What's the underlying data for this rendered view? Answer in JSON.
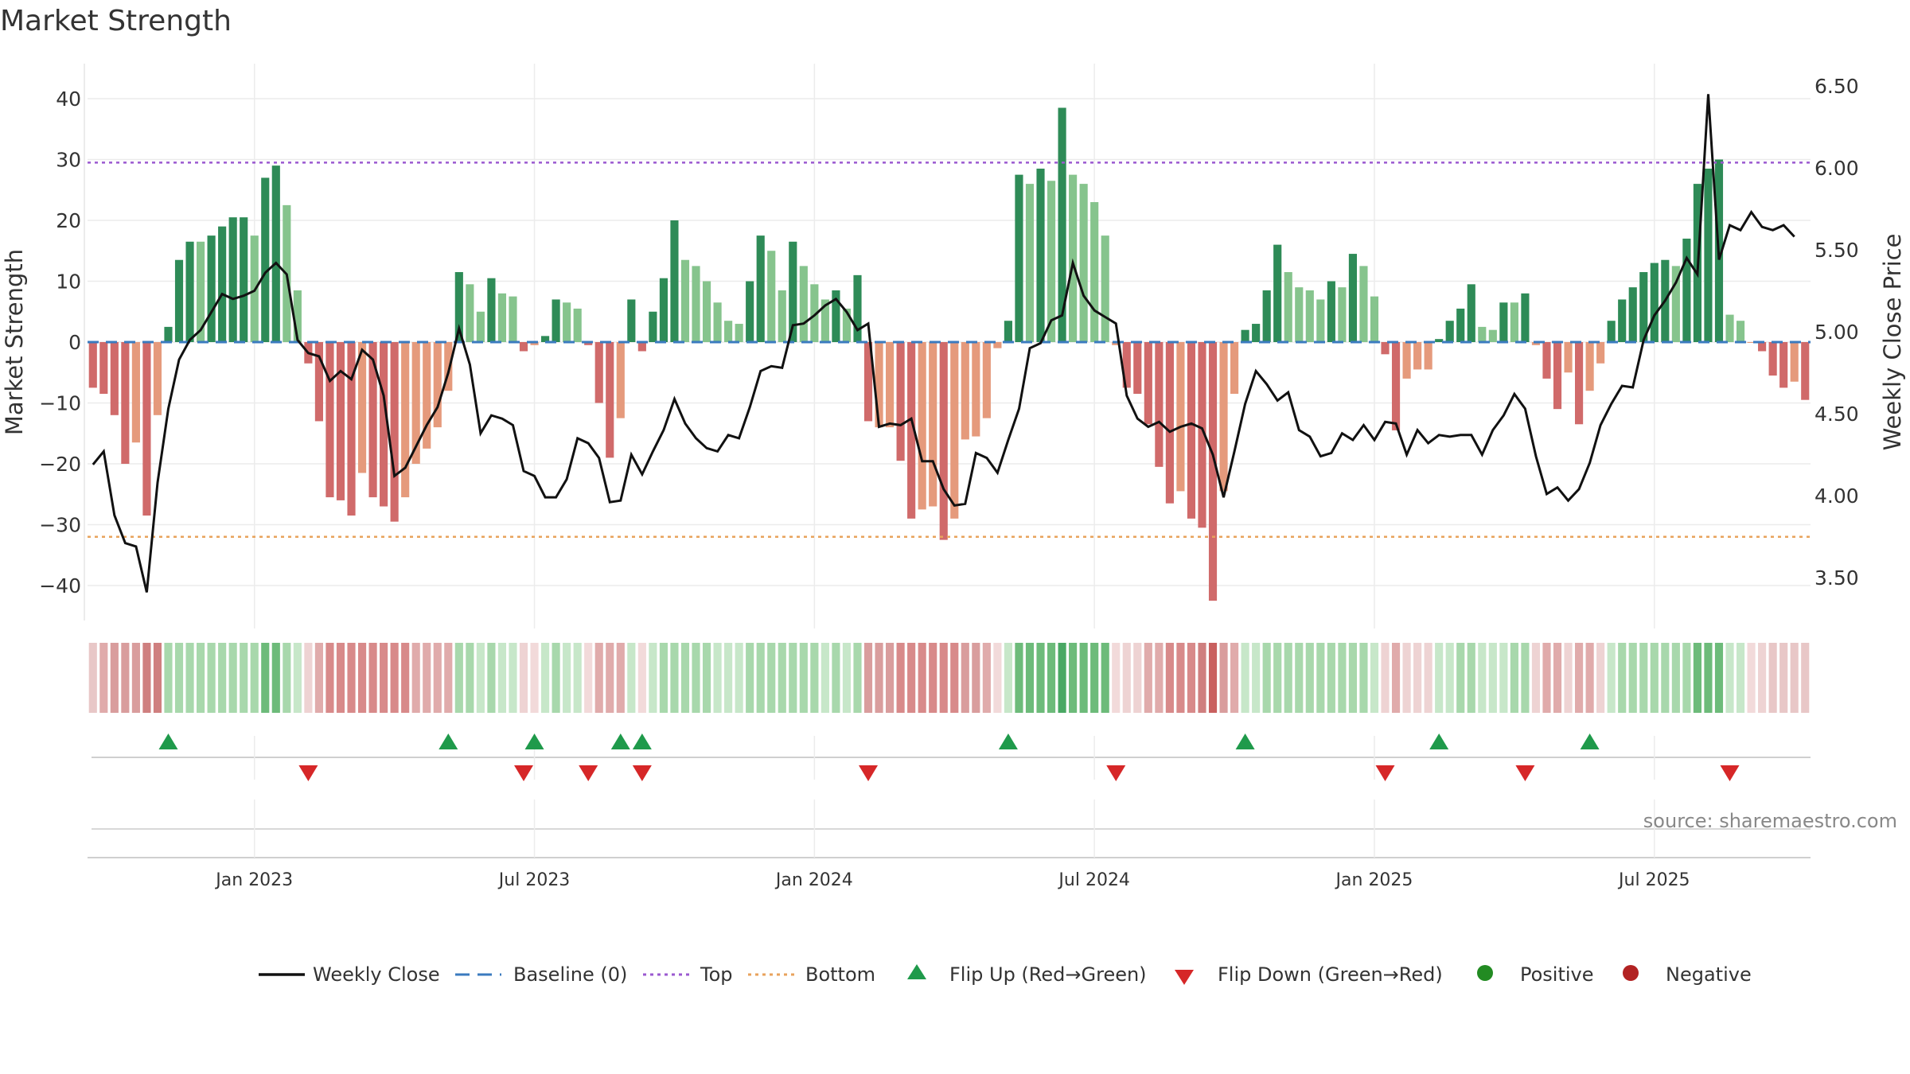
{
  "chart_data": {
    "type": "bar",
    "title": "Market Strength",
    "ylabel_left": "Market Strength",
    "ylabel_right": "Weekly Close Price",
    "ylim_left": [
      -46,
      46
    ],
    "ylim_right": [
      3.2,
      6.7
    ],
    "yticks_left": [
      40,
      30,
      20,
      10,
      0,
      -10,
      -20,
      -30,
      -40
    ],
    "yticks_right": [
      6.5,
      6.0,
      5.5,
      5.0,
      4.5,
      4.0,
      3.5
    ],
    "reference_lines": {
      "baseline": 0,
      "top": 29.5,
      "bottom": -32
    },
    "x_ticks": [
      {
        "label": "Jan 2023",
        "index": 15
      },
      {
        "label": "Jul 2023",
        "index": 41
      },
      {
        "label": "Jan 2024",
        "index": 67
      },
      {
        "label": "Jul 2024",
        "index": 93
      },
      {
        "label": "Jan 2025",
        "index": 119
      },
      {
        "label": "Jul 2025",
        "index": 145
      }
    ],
    "strength_values": [
      -7.5,
      -8.5,
      -12,
      -20,
      -16.5,
      -28.5,
      -12,
      2.5,
      13.5,
      16.5,
      16.5,
      17.5,
      19,
      20.5,
      20.5,
      17.5,
      27,
      29,
      22.5,
      8.5,
      -3.5,
      -13,
      -25.5,
      -26,
      -28.5,
      -21.5,
      -25.5,
      -27,
      -29.5,
      -25.5,
      -20,
      -17.5,
      -14,
      -8,
      11.5,
      9.5,
      5,
      10.5,
      8,
      7.5,
      -1.5,
      -0.5,
      1,
      7,
      6.5,
      5.5,
      -0.5,
      -10,
      -19,
      -12.5,
      7,
      -1.5,
      5,
      10.5,
      20,
      13.5,
      12.5,
      10,
      6.5,
      3.5,
      3,
      10,
      17.5,
      15,
      8.5,
      16.5,
      12.5,
      9.5,
      7,
      8.5,
      5.5,
      11,
      -13,
      -14,
      -14,
      -19.5,
      -29,
      -27.5,
      -27,
      -32.5,
      -29,
      -16,
      -15.5,
      -12.5,
      -1,
      3.5,
      27.5,
      26,
      28.5,
      26.5,
      38.5,
      27.5,
      26,
      23,
      17.5,
      -0.5,
      -7.5,
      -8.5,
      -13.5,
      -20.5,
      -26.5,
      -24.5,
      -29,
      -30.5,
      -42.5,
      -24.5,
      -8.5,
      2,
      3,
      8.5,
      16,
      11.5,
      9,
      8.5,
      7,
      10,
      9,
      14.5,
      12.5,
      7.5,
      -2,
      -14.5,
      -6,
      -4.5,
      -4.5,
      0.5,
      3.5,
      5.5,
      9.5,
      2.5,
      2,
      6.5,
      6.5,
      8,
      -0.5,
      -6,
      -11,
      -5,
      -13.5,
      -8,
      -3.5,
      3.5,
      7,
      9,
      11.5,
      13,
      13.5,
      12.5,
      17,
      26,
      28.5,
      30,
      4.5,
      3.5,
      0,
      -1.5,
      -5.5,
      -7.5,
      -6.5,
      -9.5
    ],
    "bar_colors": [
      "#d06a6a",
      "#d06a6a",
      "#d06a6a",
      "#d06a6a",
      "#e59a7c",
      "#d06a6a",
      "#e59a7c",
      "#2e8b57",
      "#2e8b57",
      "#2e8b57",
      "#86c48d",
      "#2e8b57",
      "#2e8b57",
      "#2e8b57",
      "#2e8b57",
      "#86c48d",
      "#2e8b57",
      "#2e8b57",
      "#86c48d",
      "#86c48d",
      "#d06a6a",
      "#d06a6a",
      "#d06a6a",
      "#d06a6a",
      "#d06a6a",
      "#e59a7c",
      "#d06a6a",
      "#d06a6a",
      "#d06a6a",
      "#e59a7c",
      "#e59a7c",
      "#e59a7c",
      "#e59a7c",
      "#e59a7c",
      "#2e8b57",
      "#86c48d",
      "#86c48d",
      "#2e8b57",
      "#86c48d",
      "#86c48d",
      "#d06a6a",
      "#e59a7c",
      "#2e8b57",
      "#2e8b57",
      "#86c48d",
      "#86c48d",
      "#d06a6a",
      "#d06a6a",
      "#d06a6a",
      "#e59a7c",
      "#2e8b57",
      "#d06a6a",
      "#2e8b57",
      "#2e8b57",
      "#2e8b57",
      "#86c48d",
      "#86c48d",
      "#86c48d",
      "#86c48d",
      "#86c48d",
      "#86c48d",
      "#2e8b57",
      "#2e8b57",
      "#86c48d",
      "#86c48d",
      "#2e8b57",
      "#86c48d",
      "#86c48d",
      "#86c48d",
      "#2e8b57",
      "#86c48d",
      "#2e8b57",
      "#d06a6a",
      "#e59a7c",
      "#e59a7c",
      "#d06a6a",
      "#d06a6a",
      "#e59a7c",
      "#e59a7c",
      "#d06a6a",
      "#e59a7c",
      "#e59a7c",
      "#e59a7c",
      "#e59a7c",
      "#e59a7c",
      "#2e8b57",
      "#2e8b57",
      "#86c48d",
      "#2e8b57",
      "#86c48d",
      "#2e8b57",
      "#86c48d",
      "#86c48d",
      "#86c48d",
      "#86c48d",
      "#e59a7c",
      "#d06a6a",
      "#d06a6a",
      "#d06a6a",
      "#d06a6a",
      "#d06a6a",
      "#e59a7c",
      "#d06a6a",
      "#d06a6a",
      "#d06a6a",
      "#e59a7c",
      "#e59a7c",
      "#2e8b57",
      "#2e8b57",
      "#2e8b57",
      "#2e8b57",
      "#86c48d",
      "#86c48d",
      "#86c48d",
      "#86c48d",
      "#2e8b57",
      "#86c48d",
      "#2e8b57",
      "#86c48d",
      "#86c48d",
      "#d06a6a",
      "#d06a6a",
      "#e59a7c",
      "#e59a7c",
      "#e59a7c",
      "#2e8b57",
      "#2e8b57",
      "#2e8b57",
      "#2e8b57",
      "#86c48d",
      "#86c48d",
      "#2e8b57",
      "#86c48d",
      "#2e8b57",
      "#e59a7c",
      "#d06a6a",
      "#d06a6a",
      "#e59a7c",
      "#d06a6a",
      "#e59a7c",
      "#e59a7c",
      "#2e8b57",
      "#2e8b57",
      "#2e8b57",
      "#2e8b57",
      "#2e8b57",
      "#2e8b57",
      "#86c48d",
      "#2e8b57",
      "#2e8b57",
      "#2e8b57",
      "#2e8b57",
      "#86c48d",
      "#86c48d",
      "#e59a7c",
      "#d06a6a",
      "#d06a6a",
      "#d06a6a",
      "#e59a7c",
      "#d06a6a"
    ],
    "heat_colors": [
      "#e8c7c7",
      "#e0abab",
      "#d99d9d",
      "#d99d9d",
      "#d99d9d",
      "#cf7f7f",
      "#cf7f7f",
      "#a8d8ac",
      "#a8d8ac",
      "#a8d8ac",
      "#a8d8ac",
      "#a8d8ac",
      "#a8d8ac",
      "#a8d8ac",
      "#a8d8ac",
      "#a8d8ac",
      "#6dbb7a",
      "#6dbb7a",
      "#a8d8ac",
      "#c7e7c9",
      "#eed3d3",
      "#e0abab",
      "#d88a8a",
      "#d88a8a",
      "#d88a8a",
      "#d88a8a",
      "#d88a8a",
      "#d88a8a",
      "#d88a8a",
      "#d88a8a",
      "#e0abab",
      "#e0abab",
      "#e0abab",
      "#e0abab",
      "#a8d8ac",
      "#a8d8ac",
      "#c7e7c9",
      "#a8d8ac",
      "#c7e7c9",
      "#c7e7c9",
      "#eed3d3",
      "#f2dada",
      "#c7e7c9",
      "#a8d8ac",
      "#c7e7c9",
      "#c7e7c9",
      "#f2dada",
      "#e0abab",
      "#e0abab",
      "#e0abab",
      "#c7e7c9",
      "#f2dada",
      "#c7e7c9",
      "#a8d8ac",
      "#a8d8ac",
      "#a8d8ac",
      "#a8d8ac",
      "#a8d8ac",
      "#c7e7c9",
      "#c7e7c9",
      "#c7e7c9",
      "#a8d8ac",
      "#a8d8ac",
      "#a8d8ac",
      "#a8d8ac",
      "#a8d8ac",
      "#a8d8ac",
      "#a8d8ac",
      "#c7e7c9",
      "#a8d8ac",
      "#c7e7c9",
      "#a8d8ac",
      "#d99d9d",
      "#d99d9d",
      "#d99d9d",
      "#d88a8a",
      "#d88a8a",
      "#d88a8a",
      "#d88a8a",
      "#d88a8a",
      "#d88a8a",
      "#d99d9d",
      "#d99d9d",
      "#e0abab",
      "#f2dada",
      "#c7e7c9",
      "#6dbb7a",
      "#6dbb7a",
      "#6dbb7a",
      "#6dbb7a",
      "#4aa864",
      "#6dbb7a",
      "#6dbb7a",
      "#6dbb7a",
      "#6dbb7a",
      "#f2dada",
      "#eed3d3",
      "#eed3d3",
      "#e0abab",
      "#e0abab",
      "#d88a8a",
      "#d88a8a",
      "#d88a8a",
      "#cf7f7f",
      "#c9605f",
      "#d99d9d",
      "#e0abab",
      "#c7e7c9",
      "#c7e7c9",
      "#a8d8ac",
      "#a8d8ac",
      "#a8d8ac",
      "#a8d8ac",
      "#a8d8ac",
      "#a8d8ac",
      "#a8d8ac",
      "#a8d8ac",
      "#a8d8ac",
      "#a8d8ac",
      "#c7e7c9",
      "#eed3d3",
      "#e0abab",
      "#eed3d3",
      "#eed3d3",
      "#eed3d3",
      "#c7e7c9",
      "#c7e7c9",
      "#a8d8ac",
      "#a8d8ac",
      "#c7e7c9",
      "#c7e7c9",
      "#c7e7c9",
      "#a8d8ac",
      "#a8d8ac",
      "#eed3d3",
      "#e0abab",
      "#e0abab",
      "#eed3d3",
      "#e0abab",
      "#e0abab",
      "#eed3d3",
      "#c7e7c9",
      "#a8d8ac",
      "#a8d8ac",
      "#a8d8ac",
      "#a8d8ac",
      "#a8d8ac",
      "#a8d8ac",
      "#a8d8ac",
      "#6dbb7a",
      "#6dbb7a",
      "#6dbb7a",
      "#c7e7c9",
      "#c7e7c9",
      "#f2dada",
      "#eed3d3",
      "#e8c7c7",
      "#e8c7c7",
      "#e8c7c7",
      "#e8c7c7"
    ],
    "close_prices": [
      4.19,
      4.27,
      3.88,
      3.71,
      3.69,
      3.41,
      4.08,
      4.53,
      4.83,
      4.95,
      5.01,
      5.12,
      5.23,
      5.2,
      5.22,
      5.25,
      5.36,
      5.42,
      5.35,
      4.95,
      4.87,
      4.85,
      4.7,
      4.76,
      4.71,
      4.89,
      4.83,
      4.61,
      4.12,
      4.17,
      4.3,
      4.43,
      4.54,
      4.75,
      5.02,
      4.8,
      4.38,
      4.49,
      4.47,
      4.43,
      4.15,
      4.12,
      3.99,
      3.99,
      4.1,
      4.35,
      4.32,
      4.23,
      3.96,
      3.97,
      4.25,
      4.13,
      4.27,
      4.4,
      4.59,
      4.44,
      4.35,
      4.29,
      4.27,
      4.37,
      4.35,
      4.54,
      4.76,
      4.79,
      4.78,
      5.04,
      5.05,
      5.1,
      5.16,
      5.2,
      5.12,
      5.01,
      5.05,
      4.42,
      4.44,
      4.43,
      4.47,
      4.21,
      4.21,
      4.04,
      3.94,
      3.95,
      4.26,
      4.23,
      4.14,
      4.34,
      4.53,
      4.9,
      4.93,
      5.07,
      5.1,
      5.42,
      5.22,
      5.13,
      5.09,
      5.05,
      4.61,
      4.47,
      4.42,
      4.45,
      4.39,
      4.42,
      4.44,
      4.41,
      4.25,
      3.99,
      4.27,
      4.56,
      4.76,
      4.68,
      4.58,
      4.63,
      4.4,
      4.36,
      4.24,
      4.26,
      4.38,
      4.34,
      4.43,
      4.34,
      4.45,
      4.44,
      4.25,
      4.4,
      4.32,
      4.37,
      4.36,
      4.37,
      4.37,
      4.25,
      4.4,
      4.49,
      4.62,
      4.53,
      4.24,
      4.01,
      4.05,
      3.97,
      4.04,
      4.2,
      4.43,
      4.56,
      4.67,
      4.66,
      4.95,
      5.1,
      5.19,
      5.3,
      5.45,
      5.35,
      6.45,
      5.44,
      5.65,
      5.62,
      5.73,
      5.64,
      5.62,
      5.65,
      5.58
    ],
    "flip_up_indices": [
      7,
      33,
      41,
      49,
      51,
      85,
      107,
      125,
      139
    ],
    "flip_down_indices": [
      20,
      40,
      46,
      51,
      72,
      95,
      120,
      133,
      152
    ],
    "source_text": "source: sharemaestro.com",
    "legend": [
      {
        "name": "Weekly Close",
        "kind": "line",
        "color": "#111111"
      },
      {
        "name": "Baseline (0)",
        "kind": "dash",
        "color": "#3b7bbf"
      },
      {
        "name": "Top",
        "kind": "dot",
        "color": "#9b59d0"
      },
      {
        "name": "Bottom",
        "kind": "dot",
        "color": "#e8a35c"
      },
      {
        "name": "Flip Up (Red→Green)",
        "kind": "tri-up",
        "color": "#1f9a4b"
      },
      {
        "name": "Flip Down (Green→Red)",
        "kind": "tri-down",
        "color": "#d62728"
      },
      {
        "name": "Positive",
        "kind": "circle",
        "color": "#228b22"
      },
      {
        "name": "Negative",
        "kind": "circle",
        "color": "#b22222"
      }
    ],
    "colors": {
      "baseline": "#3b7bbf",
      "top_line": "#9b59d0",
      "bottom_line": "#e8a35c",
      "price_line": "#111111",
      "grid": "#ececec"
    }
  }
}
